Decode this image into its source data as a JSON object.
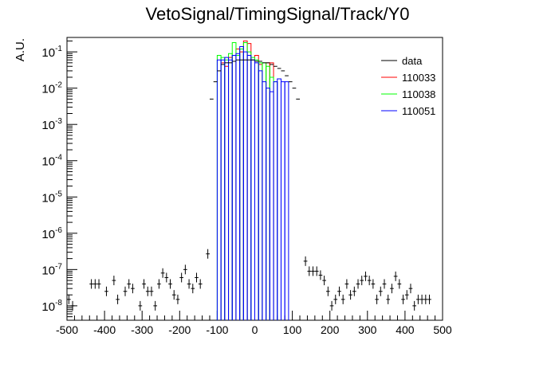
{
  "chart_data": {
    "type": "histogram",
    "title": "VetoSignal/TimingSignal/Track/Y0",
    "xlabel": "",
    "ylabel": "A.U.",
    "xlim": [
      -500,
      500
    ],
    "ylim": [
      4e-09,
      0.25
    ],
    "yscale": "log",
    "x_ticks": [
      -500,
      -400,
      -300,
      -200,
      -100,
      0,
      100,
      200,
      300,
      400,
      500
    ],
    "y_ticks": [
      {
        "value": 1e-08,
        "base": "10",
        "exp": "-8"
      },
      {
        "value": 1e-07,
        "base": "10",
        "exp": "-7"
      },
      {
        "value": 1e-06,
        "base": "10",
        "exp": "-6"
      },
      {
        "value": 1e-05,
        "base": "10",
        "exp": "-5"
      },
      {
        "value": 0.0001,
        "base": "10",
        "exp": "-4"
      },
      {
        "value": 0.001,
        "base": "10",
        "exp": "-3"
      },
      {
        "value": 0.01,
        "base": "10",
        "exp": "-2"
      },
      {
        "value": 0.1,
        "base": "10",
        "exp": "-1"
      }
    ],
    "legend": {
      "position": "top-right",
      "entries": [
        {
          "name": "data",
          "color": "#000000"
        },
        {
          "name": "110033",
          "color": "#ff0000"
        },
        {
          "name": "110038",
          "color": "#00ff00"
        },
        {
          "name": "110051",
          "color": "#0000ff"
        }
      ]
    },
    "bin_width": 10,
    "series": [
      {
        "name": "data",
        "style": "points",
        "color": "#000000",
        "points": [
          {
            "x": -495,
            "y": 1.5e-08
          },
          {
            "x": -485,
            "y": 1e-08
          },
          {
            "x": -435,
            "y": 4e-08
          },
          {
            "x": -425,
            "y": 4e-08
          },
          {
            "x": -415,
            "y": 4e-08
          },
          {
            "x": -395,
            "y": 2.5e-08
          },
          {
            "x": -375,
            "y": 5e-08
          },
          {
            "x": -365,
            "y": 1.5e-08
          },
          {
            "x": -345,
            "y": 2.5e-08
          },
          {
            "x": -335,
            "y": 4e-08
          },
          {
            "x": -325,
            "y": 3e-08
          },
          {
            "x": -305,
            "y": 1e-08
          },
          {
            "x": -295,
            "y": 4e-08
          },
          {
            "x": -285,
            "y": 2.5e-08
          },
          {
            "x": -275,
            "y": 2.5e-08
          },
          {
            "x": -265,
            "y": 1e-08
          },
          {
            "x": -255,
            "y": 4e-08
          },
          {
            "x": -245,
            "y": 8e-08
          },
          {
            "x": -235,
            "y": 6e-08
          },
          {
            "x": -225,
            "y": 4e-08
          },
          {
            "x": -215,
            "y": 2e-08
          },
          {
            "x": -205,
            "y": 1.5e-08
          },
          {
            "x": -195,
            "y": 6e-08
          },
          {
            "x": -185,
            "y": 1e-07
          },
          {
            "x": -175,
            "y": 4e-08
          },
          {
            "x": -165,
            "y": 3e-08
          },
          {
            "x": -155,
            "y": 6e-08
          },
          {
            "x": -145,
            "y": 4e-08
          },
          {
            "x": -125,
            "y": 2.7e-07
          },
          {
            "x": -115,
            "y": 0.005
          },
          {
            "x": -105,
            "y": 0.015
          },
          {
            "x": -95,
            "y": 0.03
          },
          {
            "x": -85,
            "y": 0.045
          },
          {
            "x": -75,
            "y": 0.05
          },
          {
            "x": -65,
            "y": 0.05
          },
          {
            "x": -55,
            "y": 0.055
          },
          {
            "x": -45,
            "y": 0.06
          },
          {
            "x": -35,
            "y": 0.06
          },
          {
            "x": -25,
            "y": 0.06
          },
          {
            "x": -15,
            "y": 0.06
          },
          {
            "x": -5,
            "y": 0.06
          },
          {
            "x": 5,
            "y": 0.055
          },
          {
            "x": 15,
            "y": 0.055
          },
          {
            "x": 25,
            "y": 0.05
          },
          {
            "x": 35,
            "y": 0.05
          },
          {
            "x": 45,
            "y": 0.045
          },
          {
            "x": 55,
            "y": 0.04
          },
          {
            "x": 65,
            "y": 0.035
          },
          {
            "x": 75,
            "y": 0.03
          },
          {
            "x": 85,
            "y": 0.022
          },
          {
            "x": 95,
            "y": 0.015
          },
          {
            "x": 105,
            "y": 0.01
          },
          {
            "x": 115,
            "y": 0.005
          },
          {
            "x": 135,
            "y": 1.7e-07
          },
          {
            "x": 145,
            "y": 9e-08
          },
          {
            "x": 155,
            "y": 9e-08
          },
          {
            "x": 165,
            "y": 9e-08
          },
          {
            "x": 175,
            "y": 7e-08
          },
          {
            "x": 185,
            "y": 5e-08
          },
          {
            "x": 195,
            "y": 2.5e-08
          },
          {
            "x": 205,
            "y": 1e-08
          },
          {
            "x": 215,
            "y": 1.5e-08
          },
          {
            "x": 225,
            "y": 2.5e-08
          },
          {
            "x": 235,
            "y": 1.5e-08
          },
          {
            "x": 245,
            "y": 4e-08
          },
          {
            "x": 255,
            "y": 2e-08
          },
          {
            "x": 265,
            "y": 2.5e-08
          },
          {
            "x": 275,
            "y": 4e-08
          },
          {
            "x": 285,
            "y": 5e-08
          },
          {
            "x": 295,
            "y": 6.5e-08
          },
          {
            "x": 305,
            "y": 5e-08
          },
          {
            "x": 315,
            "y": 4e-08
          },
          {
            "x": 325,
            "y": 1.5e-08
          },
          {
            "x": 335,
            "y": 2.5e-08
          },
          {
            "x": 345,
            "y": 4e-08
          },
          {
            "x": 355,
            "y": 1.5e-08
          },
          {
            "x": 365,
            "y": 3e-08
          },
          {
            "x": 375,
            "y": 6.5e-08
          },
          {
            "x": 385,
            "y": 4e-08
          },
          {
            "x": 395,
            "y": 1.5e-08
          },
          {
            "x": 405,
            "y": 2e-08
          },
          {
            "x": 415,
            "y": 3e-08
          },
          {
            "x": 425,
            "y": 1e-08
          },
          {
            "x": 435,
            "y": 1.5e-08
          },
          {
            "x": 445,
            "y": 1.5e-08
          },
          {
            "x": 455,
            "y": 1.5e-08
          },
          {
            "x": 465,
            "y": 1.5e-08
          }
        ]
      },
      {
        "name": "110033",
        "style": "step",
        "color": "#ff0000",
        "bins": [
          {
            "x0": -90,
            "x1": -80,
            "y": 0.05
          },
          {
            "x0": -80,
            "x1": -70,
            "y": 0.04
          },
          {
            "x0": -70,
            "x1": -60,
            "y": 0.07
          },
          {
            "x0": -60,
            "x1": -50,
            "y": 0.08
          },
          {
            "x0": -50,
            "x1": -40,
            "y": 0.12
          },
          {
            "x0": -40,
            "x1": -30,
            "y": 0.1
          },
          {
            "x0": -30,
            "x1": -20,
            "y": 0.2
          },
          {
            "x0": -20,
            "x1": -10,
            "y": 0.17
          },
          {
            "x0": 0,
            "x1": 10,
            "y": 0.08
          },
          {
            "x0": 10,
            "x1": 20,
            "y": 0.045
          },
          {
            "x0": 30,
            "x1": 40,
            "y": 0.05
          },
          {
            "x0": 40,
            "x1": 50,
            "y": 0.05
          }
        ]
      },
      {
        "name": "110038",
        "style": "step",
        "color": "#00ff00",
        "bins": [
          {
            "x0": -100,
            "x1": -90,
            "y": 0.08
          },
          {
            "x0": -90,
            "x1": -80,
            "y": 0.07
          },
          {
            "x0": -80,
            "x1": -70,
            "y": 0.06
          },
          {
            "x0": -70,
            "x1": -60,
            "y": 0.09
          },
          {
            "x0": -60,
            "x1": -50,
            "y": 0.18
          },
          {
            "x0": -50,
            "x1": -40,
            "y": 0.08
          },
          {
            "x0": -40,
            "x1": -30,
            "y": 0.12
          },
          {
            "x0": -30,
            "x1": -20,
            "y": 0.18
          },
          {
            "x0": -20,
            "x1": -10,
            "y": 0.1
          },
          {
            "x0": -10,
            "x1": 0,
            "y": 0.07
          },
          {
            "x0": 0,
            "x1": 10,
            "y": 0.06
          },
          {
            "x0": 10,
            "x1": 20,
            "y": 0.05
          },
          {
            "x0": 20,
            "x1": 30,
            "y": 0.05
          },
          {
            "x0": 30,
            "x1": 40,
            "y": 0.04
          },
          {
            "x0": 40,
            "x1": 50,
            "y": 0.02
          },
          {
            "x0": 50,
            "x1": 60,
            "y": 0.015
          }
        ]
      },
      {
        "name": "110051",
        "style": "step",
        "color": "#0000ff",
        "bins": [
          {
            "x0": -100,
            "x1": -90,
            "y": 0.06
          },
          {
            "x0": -90,
            "x1": -80,
            "y": 0.06
          },
          {
            "x0": -80,
            "x1": -70,
            "y": 0.07
          },
          {
            "x0": -70,
            "x1": -60,
            "y": 0.06
          },
          {
            "x0": -60,
            "x1": -50,
            "y": 0.08
          },
          {
            "x0": -50,
            "x1": -40,
            "y": 0.09
          },
          {
            "x0": -40,
            "x1": -30,
            "y": 0.14
          },
          {
            "x0": -30,
            "x1": -20,
            "y": 0.1
          },
          {
            "x0": -20,
            "x1": -10,
            "y": 0.08
          },
          {
            "x0": -10,
            "x1": 0,
            "y": 0.06
          },
          {
            "x0": 0,
            "x1": 10,
            "y": 0.05
          },
          {
            "x0": 10,
            "x1": 20,
            "y": 0.03
          },
          {
            "x0": 20,
            "x1": 30,
            "y": 0.015
          },
          {
            "x0": 30,
            "x1": 40,
            "y": 0.01
          },
          {
            "x0": 40,
            "x1": 50,
            "y": 0.008
          },
          {
            "x0": 50,
            "x1": 60,
            "y": 0.015
          },
          {
            "x0": 60,
            "x1": 70,
            "y": 0.018
          },
          {
            "x0": 70,
            "x1": 80,
            "y": 0.015
          },
          {
            "x0": 80,
            "x1": 90,
            "y": 0.015
          }
        ]
      }
    ]
  }
}
